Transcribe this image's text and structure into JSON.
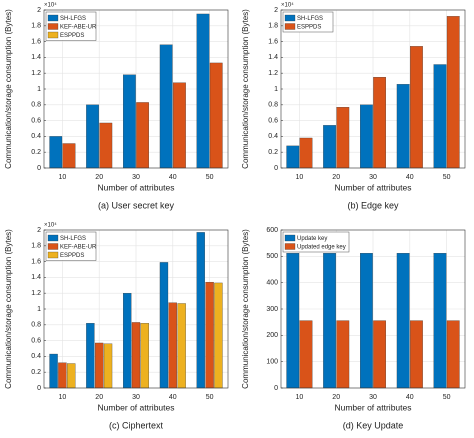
{
  "chart_data": [
    {
      "type": "bar",
      "caption": "(a)   User secret key",
      "exponent": "×10⁴",
      "ylabel": "Communication/storage consumption (Bytes)",
      "xlabel": "Number of attributes",
      "categories": [
        "10",
        "20",
        "30",
        "40",
        "50"
      ],
      "ylim": [
        0,
        2
      ],
      "yticks": [
        0,
        0.2,
        0.4,
        0.6,
        0.8,
        1,
        1.2,
        1.4,
        1.6,
        1.8,
        2
      ],
      "grid": true,
      "legend": "top-left",
      "series": [
        {
          "name": "SH-LFGS",
          "color": "#0072BD",
          "values": [
            0.4,
            0.8,
            1.18,
            1.56,
            1.95
          ]
        },
        {
          "name": "KEF-ABE-UR",
          "color": "#D95319",
          "values": [
            0.31,
            0.57,
            0.83,
            1.08,
            1.33
          ]
        },
        {
          "name": "ESPPDS",
          "color": "#EDB120",
          "values": [
            null,
            null,
            null,
            null,
            null
          ]
        }
      ]
    },
    {
      "type": "bar",
      "caption": "(b)  Edge key",
      "exponent": "×10⁴",
      "ylabel": "Communication/storage consumption (Bytes)",
      "xlabel": "Number of attributes",
      "categories": [
        "10",
        "20",
        "30",
        "40",
        "50"
      ],
      "ylim": [
        0,
        2
      ],
      "yticks": [
        0,
        0.2,
        0.4,
        0.6,
        0.8,
        1,
        1.2,
        1.4,
        1.6,
        1.8,
        2
      ],
      "grid": true,
      "legend": "top-left",
      "series": [
        {
          "name": "SH-LFGS",
          "color": "#0072BD",
          "values": [
            0.28,
            0.54,
            0.8,
            1.06,
            1.31
          ]
        },
        {
          "name": "ESPPDS",
          "color": "#D95319",
          "values": [
            0.38,
            0.77,
            1.15,
            1.54,
            1.92
          ]
        }
      ]
    },
    {
      "type": "bar",
      "caption": "(c)  Ciphertext",
      "exponent": "×10⁴",
      "ylabel": "Communication/storage consumption (Bytes)",
      "xlabel": "Number of attributes",
      "categories": [
        "10",
        "20",
        "30",
        "40",
        "50"
      ],
      "ylim": [
        0,
        2
      ],
      "yticks": [
        0,
        0.2,
        0.4,
        0.6,
        0.8,
        1,
        1.2,
        1.4,
        1.6,
        1.8,
        2
      ],
      "grid": true,
      "legend": "top-left",
      "series": [
        {
          "name": "SH-LFGS",
          "color": "#0072BD",
          "values": [
            0.43,
            0.82,
            1.2,
            1.59,
            1.97
          ]
        },
        {
          "name": "KEF-ABE-UR",
          "color": "#D95319",
          "values": [
            0.32,
            0.57,
            0.83,
            1.08,
            1.34
          ]
        },
        {
          "name": "ESPPDS",
          "color": "#EDB120",
          "values": [
            0.31,
            0.56,
            0.82,
            1.07,
            1.33
          ]
        }
      ]
    },
    {
      "type": "bar",
      "caption": "(d)  Key Update",
      "ylabel": "Communication/storage consumption (Bytes)",
      "xlabel": "Number of attributes",
      "categories": [
        "10",
        "20",
        "30",
        "40",
        "50"
      ],
      "ylim": [
        0,
        600
      ],
      "yticks": [
        0,
        100,
        200,
        300,
        400,
        500,
        600
      ],
      "grid": true,
      "legend": "top-left",
      "series": [
        {
          "name": "Update key",
          "color": "#0072BD",
          "values": [
            512,
            512,
            512,
            512,
            512
          ]
        },
        {
          "name": "Updated edge key",
          "color": "#D95319",
          "values": [
            256,
            256,
            256,
            256,
            256
          ]
        }
      ]
    }
  ]
}
